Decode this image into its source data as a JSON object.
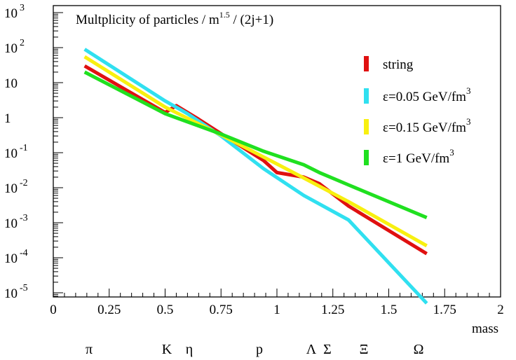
{
  "chart_data": {
    "type": "line",
    "title": "Multplicity of particles / m^1.5 / (2j+1)",
    "title_parts": {
      "main": "Multplicity of particles / m",
      "sup": "1.5",
      "tail": " / (2j+1)"
    },
    "xlabel": "mass",
    "ylabel": "",
    "xlim": [
      0,
      2
    ],
    "ylim_log10": [
      -5.2,
      3.0
    ],
    "yscale": "log",
    "grid": false,
    "legend_position": "right",
    "x_ticks": [
      "0",
      "0.25",
      "0.5",
      "0.75",
      "1",
      "1.25",
      "1.5",
      "1.75",
      "2"
    ],
    "y_ticks": [
      {
        "base": "10",
        "exp": "3"
      },
      {
        "base": "10",
        "exp": "2"
      },
      {
        "base": "10",
        "exp": ""
      },
      {
        "base": "1",
        "exp": ""
      },
      {
        "base": "10",
        "exp": "-1"
      },
      {
        "base": "10",
        "exp": "-2"
      },
      {
        "base": "10",
        "exp": "-3"
      },
      {
        "base": "10",
        "exp": "-4"
      },
      {
        "base": "10",
        "exp": "-5"
      }
    ],
    "particles": [
      {
        "label": "π",
        "mass": 0.14
      },
      {
        "label": "K",
        "mass": 0.5
      },
      {
        "label": "η",
        "mass": 0.6
      },
      {
        "label": "p",
        "mass": 0.94
      },
      {
        "label": "Λ",
        "mass": 1.13
      },
      {
        "label": "Σ",
        "mass": 1.22
      },
      {
        "label": "Ξ",
        "mass": 1.38
      },
      {
        "label": "Ω",
        "mass": 1.63
      }
    ],
    "series": [
      {
        "name": "string",
        "name_parts": {
          "main": "string",
          "sup": ""
        },
        "color": "#e01010",
        "x": [
          0.14,
          0.5,
          0.55,
          0.65,
          0.75,
          0.94,
          1.0,
          1.12,
          1.19,
          1.32,
          1.67
        ],
        "y": [
          30,
          1.4,
          2.2,
          0.9,
          0.35,
          0.06,
          0.027,
          0.02,
          0.013,
          0.003,
          0.00013
        ]
      },
      {
        "name": "ε=0.05 GeV/fm3",
        "name_parts": {
          "main": "ε=0.05 GeV/fm",
          "sup": "3"
        },
        "color": "#30e0f0",
        "x": [
          0.14,
          0.5,
          0.6,
          0.75,
          0.94,
          1.12,
          1.32,
          1.67
        ],
        "y": [
          90,
          3.0,
          1.3,
          0.3,
          0.035,
          0.006,
          0.0012,
          5e-06
        ]
      },
      {
        "name": "ε=0.15 GeV/fm3",
        "name_parts": {
          "main": "ε=0.15  GeV/fm",
          "sup": "3"
        },
        "color": "#f8f010",
        "x": [
          0.14,
          0.5,
          0.75,
          0.94,
          1.12,
          1.32,
          1.67
        ],
        "y": [
          55,
          2.0,
          0.32,
          0.075,
          0.019,
          0.004,
          0.00022
        ]
      },
      {
        "name": "ε=1 GeV/fm3",
        "name_parts": {
          "main": "ε=1    GeV/fm",
          "sup": "3"
        },
        "color": "#20e020",
        "x": [
          0.14,
          0.5,
          0.75,
          0.94,
          1.12,
          1.19,
          1.32,
          1.67
        ],
        "y": [
          20,
          1.3,
          0.34,
          0.11,
          0.045,
          0.027,
          0.012,
          0.0014
        ]
      }
    ]
  }
}
